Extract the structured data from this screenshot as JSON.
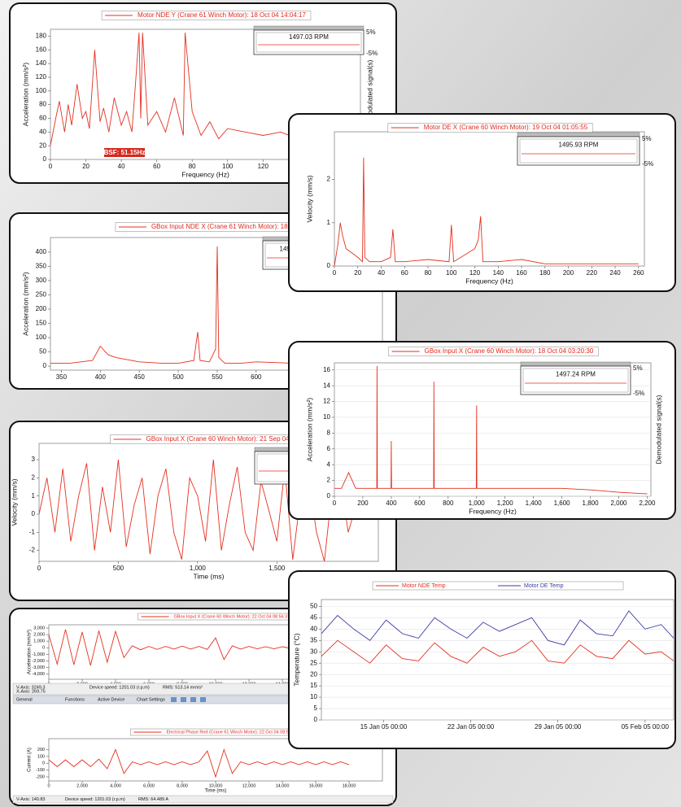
{
  "chart_data": [
    {
      "type": "line",
      "title": "Motor NDE Y (Crane 61 Winch Motor): 18 Oct 04 14:04:17",
      "xlabel": "Frequency (Hz)",
      "ylabel": "Acceleration (mm/s²)",
      "y2label": "Demodulated signal(s)",
      "annotation": "BSF: 51.15Hz",
      "speed": "1497.03 RPM",
      "speed_range": [
        "5%",
        "-5%"
      ],
      "x": [
        0,
        3,
        5,
        8,
        10,
        12,
        15,
        18,
        20,
        22,
        25,
        28,
        30,
        33,
        36,
        40,
        43,
        46,
        48,
        50,
        51,
        52,
        55,
        60,
        65,
        70,
        75,
        76,
        80,
        85,
        90,
        95,
        100,
        110,
        120,
        130,
        140,
        150,
        160,
        170
      ],
      "series": [
        {
          "color": "#e5301f",
          "values": [
            20,
            60,
            85,
            40,
            80,
            50,
            110,
            60,
            70,
            45,
            160,
            55,
            75,
            40,
            90,
            50,
            70,
            40,
            110,
            185,
            60,
            185,
            50,
            70,
            40,
            90,
            35,
            185,
            70,
            35,
            55,
            30,
            45,
            40,
            35,
            40,
            30,
            25,
            30,
            20
          ]
        }
      ],
      "xlim": [
        0,
        175
      ],
      "ylim": [
        0,
        190
      ],
      "xticks": [
        0,
        20,
        40,
        60,
        80,
        100,
        120,
        140,
        160
      ],
      "yticks": [
        0,
        20,
        40,
        60,
        80,
        100,
        120,
        140,
        160,
        180
      ]
    },
    {
      "type": "line",
      "title": "Motor DE X (Crane 60 Winch Motor): 19 Oct 04 01:05:55",
      "xlabel": "Frequency (Hz)",
      "ylabel": "Velocity (mm/s)",
      "speed": "1495.93 RPM",
      "speed_range": [
        "5%",
        "-5%"
      ],
      "x": [
        0,
        3,
        5,
        7,
        10,
        15,
        20,
        24,
        25,
        26,
        30,
        40,
        48,
        50,
        52,
        60,
        80,
        98,
        100,
        102,
        120,
        123,
        125,
        127,
        140,
        160,
        180,
        200,
        220,
        240,
        260
      ],
      "series": [
        {
          "color": "#e5301f",
          "values": [
            0,
            0.5,
            1.0,
            0.7,
            0.4,
            0.3,
            0.2,
            0.1,
            2.5,
            0.2,
            0.1,
            0.1,
            0.2,
            0.85,
            0.1,
            0.1,
            0.15,
            0.1,
            0.95,
            0.1,
            0.4,
            0.6,
            1.15,
            0.1,
            0.1,
            0.15,
            0.05,
            0.05,
            0.05,
            0.05,
            0.05
          ]
        }
      ],
      "xlim": [
        0,
        265
      ],
      "ylim": [
        0,
        3.1
      ],
      "xticks": [
        0,
        20,
        40,
        60,
        80,
        100,
        120,
        140,
        160,
        180,
        200,
        220,
        240,
        260
      ],
      "yticks": [
        0,
        1,
        2
      ]
    },
    {
      "type": "line",
      "title": "GBox Input NDE X (Crane 61 Winch Motor): 18 Oct 04 0",
      "ylabel": "Acceleration (mm/s²)",
      "speed": "1497.83",
      "x": [
        336,
        360,
        390,
        400,
        410,
        420,
        450,
        480,
        500,
        520,
        525,
        528,
        540,
        548,
        550,
        552,
        560,
        580,
        600,
        650,
        700,
        750,
        762
      ],
      "series": [
        {
          "color": "#e5301f",
          "values": [
            10,
            10,
            20,
            70,
            40,
            30,
            15,
            10,
            10,
            20,
            120,
            20,
            15,
            60,
            420,
            30,
            10,
            10,
            15,
            10,
            10,
            10,
            10
          ]
        }
      ],
      "xlim": [
        336,
        762
      ],
      "ylim": [
        -14,
        451
      ],
      "xticks": [
        350,
        400,
        450,
        500,
        550,
        600,
        650,
        700,
        750
      ],
      "yticks": [
        0,
        50,
        100,
        150,
        200,
        250,
        300,
        350,
        400
      ]
    },
    {
      "type": "line",
      "title": "GBox Input X (Crane 60 Winch Motor): 18 Oct 04 03:20:30",
      "xlabel": "Frequency (Hz)",
      "ylabel": "Acceleration (mm/s²)",
      "y2label": "Demodulated signal(s)",
      "speed": "1497.24 RPM",
      "speed_range": [
        "5%",
        "-5%"
      ],
      "grid": true,
      "x": [
        0,
        50,
        100,
        150,
        200,
        250,
        298,
        300,
        302,
        350,
        398,
        400,
        402,
        500,
        600,
        698,
        700,
        702,
        800,
        900,
        998,
        1000,
        1002,
        1200,
        1400,
        1600,
        1800,
        2000,
        2200
      ],
      "series": [
        {
          "color": "#e5301f",
          "values": [
            1,
            1,
            3,
            1,
            1,
            1,
            1,
            16.5,
            1,
            1,
            1,
            7,
            1,
            1,
            1,
            1,
            14.5,
            1,
            1,
            1,
            1,
            11.5,
            1,
            1,
            1,
            1,
            0.8,
            0.5,
            0.3
          ]
        }
      ],
      "xlim": [
        0,
        2226
      ],
      "ylim": [
        0,
        16.9
      ],
      "xticks": [
        0,
        200,
        400,
        600,
        800,
        {
          "value": 1000,
          "label": "1,000"
        },
        {
          "value": 1200,
          "label": "1,200"
        },
        {
          "value": 1400,
          "label": "1,400"
        },
        {
          "value": 1600,
          "label": "1,600"
        },
        {
          "value": 1800,
          "label": "1,800"
        },
        {
          "value": 2000,
          "label": "2,000"
        },
        {
          "value": 2200,
          "label": "2,200"
        }
      ],
      "yticks": [
        0,
        2,
        4,
        6,
        8,
        10,
        12,
        14,
        16
      ]
    },
    {
      "type": "line",
      "title": "GBox Input X (Crane 60 Winch Motor): 21 Sep 04 00:2",
      "xlabel": "Time (ms)",
      "ylabel": "Velocity (mm/s)",
      "x": [
        0,
        50,
        100,
        150,
        200,
        250,
        300,
        350,
        400,
        450,
        500,
        550,
        600,
        650,
        700,
        750,
        800,
        850,
        900,
        950,
        1000,
        1050,
        1100,
        1150,
        1200,
        1250,
        1300,
        1350,
        1400,
        1450,
        1500,
        1550,
        1600,
        1650,
        1700,
        1750,
        1800,
        1850,
        1900,
        1950,
        2000
      ],
      "series": [
        {
          "color": "#e5301f",
          "values": [
            0,
            2,
            -1,
            2.5,
            -1.5,
            1,
            2.8,
            -2,
            1.5,
            -1,
            3,
            -1.8,
            0.5,
            2,
            -2.2,
            1,
            2.5,
            -1,
            -2.5,
            2,
            1,
            -1.5,
            3,
            -2,
            0.5,
            2.6,
            -1,
            -2,
            1.8,
            0.2,
            -1.5,
            2.5,
            -2.5,
            1,
            2,
            -1,
            -2.6,
            1.5,
            2,
            -1,
            0.5
          ]
        }
      ],
      "xlim": [
        0,
        2140
      ],
      "ylim": [
        -2.6,
        3.9
      ],
      "xticks": [
        0,
        500,
        {
          "value": 1000,
          "label": "1,000"
        },
        {
          "value": 1500,
          "label": "1,500"
        }
      ],
      "yticks": [
        -2,
        -1,
        0,
        1,
        2,
        3
      ]
    },
    {
      "type": "line",
      "ylabel": "Temperature (°C)",
      "grid": true,
      "x": [
        2,
        3.3,
        4.6,
        5.9,
        7.2,
        8.5,
        9.8,
        11.1,
        12.4,
        13.7,
        15,
        16.3,
        17.6,
        18.9,
        20.2,
        21.5,
        22.8,
        24.1,
        25.4,
        26.7,
        28,
        29.3,
        30.3
      ],
      "series": [
        {
          "name": "Motor NDE Temp",
          "color": "#e5301f",
          "values": [
            28,
            35,
            30,
            25,
            33,
            27,
            26,
            34,
            28,
            25,
            32,
            28,
            30,
            35,
            26,
            25,
            33,
            28,
            27,
            35,
            29,
            30,
            26
          ]
        },
        {
          "name": "Motor DE Temp",
          "color": "#3c3ca6",
          "values": [
            38,
            46,
            40,
            35,
            44,
            38,
            36,
            45,
            40,
            36,
            43,
            39,
            42,
            45,
            35,
            33,
            44,
            38,
            37,
            48,
            40,
            42,
            36
          ]
        }
      ],
      "xlim": [
        2,
        30.3
      ],
      "ylim": [
        0,
        53
      ],
      "xticks": [
        {
          "value": 7,
          "label": "15 Jan 05 00:00"
        },
        {
          "value": 14,
          "label": "22 Jan 05 00:00"
        },
        {
          "value": 21,
          "label": "29 Jan 05 00:00"
        },
        {
          "value": 28,
          "label": "05 Feb 05 00:00"
        }
      ],
      "yticks": [
        0,
        5,
        10,
        15,
        20,
        25,
        30,
        35,
        40,
        45,
        50
      ]
    },
    {
      "type": "line",
      "title": "GBox Input X (Crane 60 Winch Motor): 22 Oct 04 08:56:37",
      "xlabel": "Time (ms)",
      "ylabel": "Acceleration (mm/s²)",
      "x": [
        0,
        500,
        1000,
        1500,
        2000,
        2500,
        3000,
        3500,
        4000,
        4500,
        5000,
        5500,
        6000,
        6500,
        7000,
        7500,
        8000,
        8500,
        9000,
        9500,
        10000,
        10500,
        11000,
        11500,
        12000,
        12500,
        13000,
        13500,
        14000,
        14500,
        15000,
        15500,
        16000,
        16500,
        17000,
        17500,
        18000
      ],
      "series": [
        {
          "color": "#e5301f",
          "values": [
            2000,
            -2500,
            2800,
            -2600,
            2400,
            -2700,
            2600,
            -2200,
            2500,
            -1500,
            300,
            -300,
            200,
            -250,
            200,
            -200,
            250,
            -200,
            200,
            -250,
            1500,
            -1800,
            300,
            -200,
            200,
            -150,
            150,
            -150,
            150,
            -100,
            100,
            -100,
            100,
            -100,
            100,
            -100,
            100
          ]
        }
      ],
      "xlim": [
        0,
        20000
      ],
      "ylim": [
        -4800,
        3500
      ],
      "xticks": [
        0,
        {
          "value": 2000,
          "label": "2,000"
        },
        {
          "value": 4000,
          "label": "4,000"
        },
        {
          "value": 6000,
          "label": "6,000"
        },
        {
          "value": 8000,
          "label": "8,000"
        },
        {
          "value": 10000,
          "label": "10,000"
        },
        {
          "value": 12000,
          "label": "12,000"
        },
        {
          "value": 14000,
          "label": "14,000"
        }
      ],
      "yticks": [
        {
          "value": -4000,
          "label": "-4,000"
        },
        {
          "value": -3000,
          "label": "-3,000"
        },
        {
          "value": -2000,
          "label": "-2,000"
        },
        {
          "value": -1000,
          "label": "-1,000"
        },
        0,
        {
          "value": 1000,
          "label": "1,000"
        },
        {
          "value": 2000,
          "label": "2,000"
        },
        {
          "value": 3000,
          "label": "3,000"
        }
      ]
    },
    {
      "type": "line",
      "title": "Electrical Phase Red (Crane 61 Winch Motor): 22 Oct 04 08:56:37",
      "xlabel": "Time (ms)",
      "ylabel": "Current (A)",
      "x": [
        0,
        500,
        1000,
        1500,
        2000,
        2500,
        3000,
        3500,
        4000,
        4500,
        5000,
        5500,
        6000,
        6500,
        7000,
        7500,
        8000,
        8500,
        9000,
        9500,
        10000,
        10500,
        11000,
        11500,
        12000,
        12500,
        13000,
        13500,
        14000,
        14500,
        15000,
        15500,
        16000,
        16500,
        17000,
        17500,
        18000
      ],
      "series": [
        {
          "color": "#e5301f",
          "values": [
            50,
            -50,
            50,
            -50,
            50,
            -50,
            60,
            -80,
            200,
            -150,
            20,
            -20,
            20,
            -20,
            20,
            -20,
            20,
            -20,
            20,
            180,
            -200,
            200,
            -150,
            20,
            -20,
            20,
            -20,
            20,
            -20,
            20,
            -20,
            20,
            -20,
            20,
            -20,
            20,
            -20
          ]
        }
      ],
      "xlim": [
        0,
        20000
      ],
      "ylim": [
        -260,
        360
      ],
      "xticks": [
        0,
        {
          "value": 2000,
          "label": "2,000"
        },
        {
          "value": 4000,
          "label": "4,000"
        },
        {
          "value": 6000,
          "label": "6,000"
        },
        {
          "value": 8000,
          "label": "8,000"
        },
        {
          "value": 10000,
          "label": "10,000"
        },
        {
          "value": 12000,
          "label": "12,000"
        },
        {
          "value": 14000,
          "label": "14,000"
        },
        {
          "value": 16000,
          "label": "16,000"
        },
        {
          "value": 18000,
          "label": "18,000"
        }
      ],
      "yticks": [
        -200,
        -100,
        0,
        100,
        200
      ]
    }
  ],
  "toolbar": {
    "status": [
      "V-Axis: 3249.3",
      "X-Axis: 269.75",
      "Device speed: 1201.03 (r.p.m)",
      "RMS: 513.14 mm/s²"
    ],
    "menu": [
      "General",
      "Functions",
      "Active Device",
      "Chart Settings"
    ],
    "status2": [
      "V-Axis: 140.83",
      "Device speed: 1201.03 (r.p.m)",
      "RMS: 64.489 A"
    ]
  }
}
